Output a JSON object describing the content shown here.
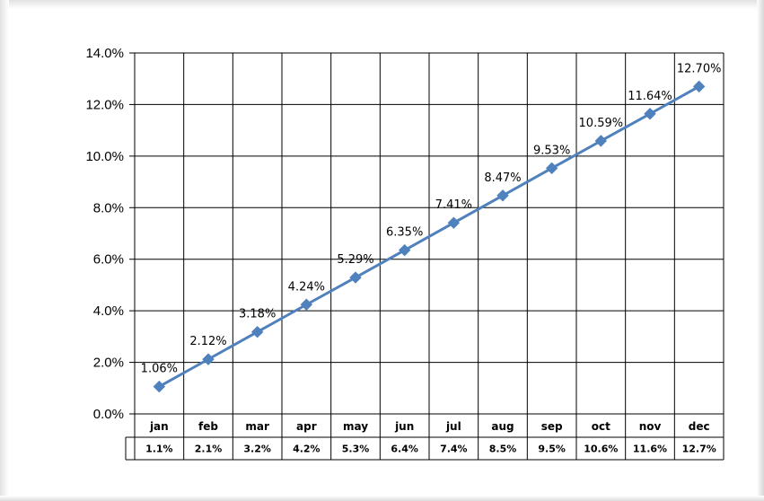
{
  "chart_data": {
    "type": "line",
    "title": "",
    "xlabel": "",
    "ylabel": "",
    "categories": [
      "jan",
      "feb",
      "mar",
      "apr",
      "may",
      "jun",
      "jul",
      "aug",
      "sep",
      "oct",
      "nov",
      "dec"
    ],
    "series": [
      {
        "values": [
          1.06,
          2.12,
          3.18,
          4.24,
          5.29,
          6.35,
          7.41,
          8.47,
          9.53,
          10.59,
          11.64,
          12.7
        ],
        "data_labels": [
          "1.06%",
          "2.12%",
          "3.18%",
          "4.24%",
          "5.29%",
          "6.35%",
          "7.41%",
          "8.47%",
          "9.53%",
          "10.59%",
          "11.64%",
          "12.70%"
        ],
        "color": "#4F81BD",
        "marker": "diamond"
      }
    ],
    "ylim": [
      0,
      14
    ],
    "y_ticks": [
      0,
      2,
      4,
      6,
      8,
      10,
      12,
      14
    ],
    "y_tick_labels": [
      "0.0%",
      "2.0%",
      "4.0%",
      "6.0%",
      "8.0%",
      "10.0%",
      "12.0%",
      "14.0%"
    ],
    "grid": true,
    "legend": "none",
    "data_table": {
      "values": [
        "1.1%",
        "2.1%",
        "3.2%",
        "4.2%",
        "5.3%",
        "6.4%",
        "7.4%",
        "8.5%",
        "9.5%",
        "10.6%",
        "11.6%",
        "12.7%"
      ]
    }
  }
}
